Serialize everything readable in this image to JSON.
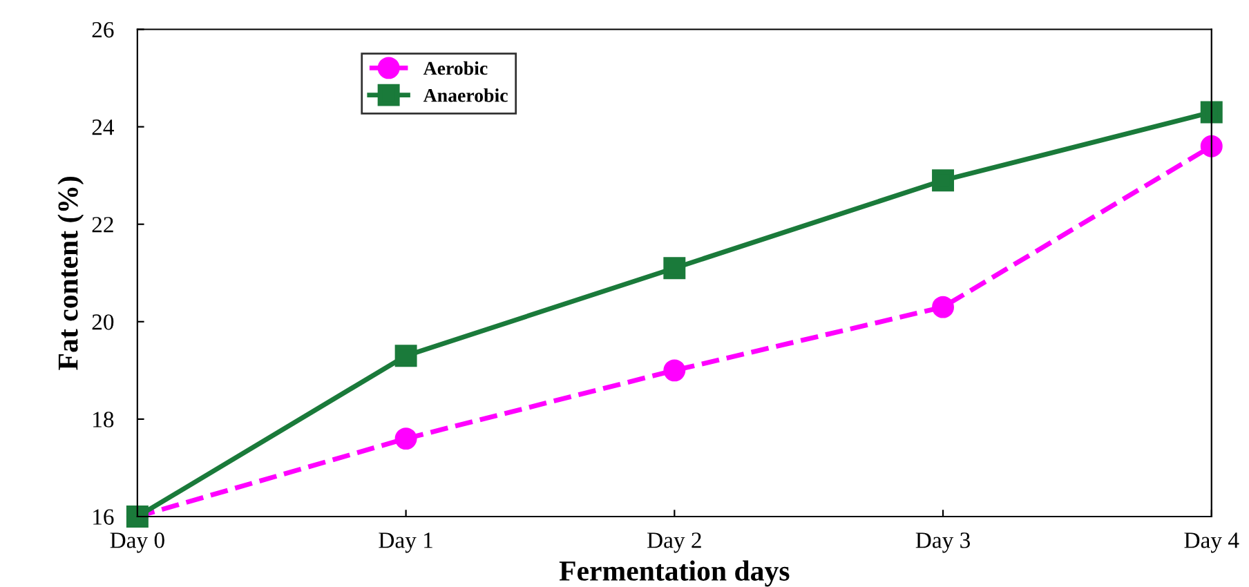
{
  "chart_data": {
    "type": "line",
    "xlabel": "Fermentation days",
    "ylabel": "Fat content (%)",
    "categories": [
      "Day 0",
      "Day 1",
      "Day 2",
      "Day 3",
      "Day 4"
    ],
    "series": [
      {
        "name": "Aerobic",
        "color": "#ff00ff",
        "marker": "circle",
        "line_style": "dashed",
        "values": [
          16.0,
          17.6,
          19.0,
          20.3,
          23.6
        ]
      },
      {
        "name": "Anaerobic",
        "color": "#1a7a3a",
        "marker": "square",
        "line_style": "solid",
        "values": [
          16.0,
          19.3,
          21.1,
          22.9,
          24.3
        ]
      }
    ],
    "ylim": [
      16,
      26
    ],
    "yticks": [
      16,
      18,
      20,
      22,
      24,
      26
    ],
    "grid": false,
    "legend": "top left"
  }
}
